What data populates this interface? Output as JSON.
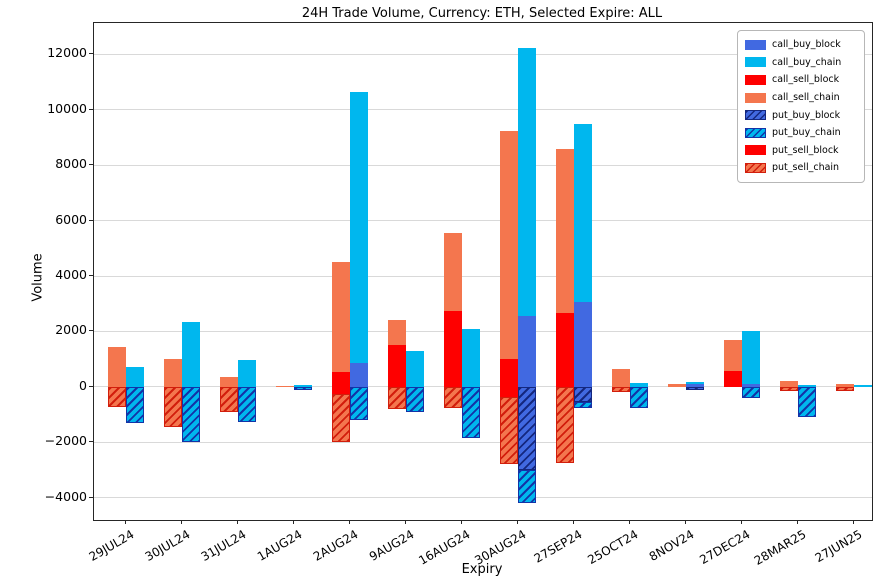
{
  "chart_data": {
    "type": "bar",
    "stacked": true,
    "title": "24H Trade Volume, Currency: ETH, Selected Expire: ALL",
    "xlabel": "Expiry",
    "ylabel": "Volume",
    "grid": true,
    "legend_position": "upper right",
    "ylim": [
      -4810,
      13135
    ],
    "yticks": [
      -4000,
      -2000,
      0,
      2000,
      4000,
      6000,
      8000,
      10000,
      12000
    ],
    "categories": [
      "29JUL24",
      "30JUL24",
      "31JUL24",
      "1AUG24",
      "2AUG24",
      "9AUG24",
      "16AUG24",
      "30AUG24",
      "27SEP24",
      "25OCT24",
      "8NOV24",
      "27DEC24",
      "28MAR25",
      "27JUN25"
    ],
    "series": [
      {
        "name": "call_buy_block",
        "bar": "buy",
        "color": "#4169e1",
        "hatch": false,
        "stripe": "#14277f",
        "values": [
          0,
          0,
          0,
          0,
          850,
          0,
          0,
          2550,
          3050,
          0,
          100,
          100,
          0,
          0
        ]
      },
      {
        "name": "call_buy_chain",
        "bar": "buy",
        "color": "#00b7ee",
        "hatch": false,
        "stripe": "#1333a7",
        "values": [
          720,
          2350,
          950,
          50,
          9800,
          1300,
          2100,
          9700,
          6450,
          150,
          70,
          1900,
          50,
          80
        ]
      },
      {
        "name": "call_sell_block",
        "bar": "sell",
        "color": "#fe0000",
        "hatch": false,
        "stripe": "#a80000",
        "values": [
          0,
          0,
          0,
          0,
          550,
          1500,
          2750,
          1000,
          2650,
          0,
          0,
          570,
          0,
          0
        ]
      },
      {
        "name": "call_sell_chain",
        "bar": "sell",
        "color": "#f4764e",
        "hatch": false,
        "stripe": "#d21e0c",
        "values": [
          1450,
          1000,
          350,
          30,
          3950,
          900,
          2800,
          8250,
          5950,
          650,
          100,
          1130,
          200,
          100
        ]
      },
      {
        "name": "put_buy_block",
        "bar": "buy",
        "color": "#4169e1",
        "hatch": true,
        "stripe": "#14277f",
        "values": [
          0,
          0,
          0,
          0,
          0,
          0,
          0,
          -3000,
          -550,
          0,
          -120,
          0,
          0,
          0
        ]
      },
      {
        "name": "put_buy_chain",
        "bar": "buy",
        "color": "#00b7ee",
        "hatch": true,
        "stripe": "#1333a7",
        "values": [
          -1300,
          -2000,
          -1270,
          -100,
          -1200,
          -900,
          -1850,
          -1200,
          -200,
          -750,
          0,
          -400,
          -1100,
          0
        ]
      },
      {
        "name": "put_sell_block",
        "bar": "sell",
        "color": "#fe0000",
        "hatch": false,
        "stripe": "#a80000",
        "values": [
          0,
          0,
          0,
          0,
          -250,
          0,
          0,
          -370,
          0,
          0,
          0,
          0,
          0,
          0
        ]
      },
      {
        "name": "put_sell_chain",
        "bar": "sell",
        "color": "#f4764e",
        "hatch": true,
        "stripe": "#d21e0c",
        "values": [
          -730,
          -1450,
          -900,
          0,
          -1750,
          -800,
          -750,
          -2430,
          -2750,
          -200,
          0,
          0,
          -150,
          -150
        ]
      }
    ]
  }
}
